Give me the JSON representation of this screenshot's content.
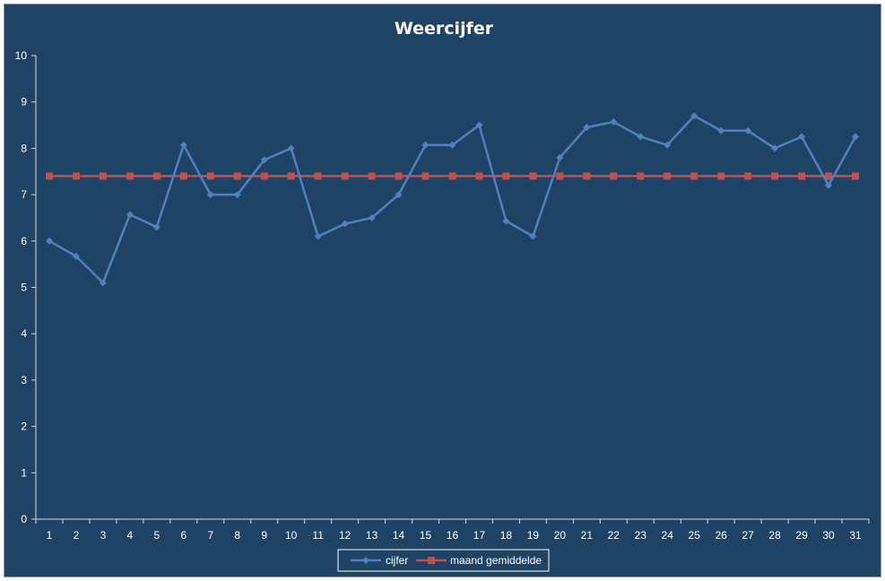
{
  "colors": {
    "background": "#1f4365",
    "series_cijfer": "#4f81bd",
    "series_gemiddelde": "#c0504d",
    "axis": "#d9d9d9"
  },
  "chart_data": {
    "type": "line",
    "title": "Weercijfer",
    "xlabel": "",
    "ylabel": "",
    "x": [
      1,
      2,
      3,
      4,
      5,
      6,
      7,
      8,
      9,
      10,
      11,
      12,
      13,
      14,
      15,
      16,
      17,
      18,
      19,
      20,
      21,
      22,
      23,
      24,
      25,
      26,
      27,
      28,
      29,
      30,
      31
    ],
    "ylim": [
      0,
      10
    ],
    "yticks": [
      0,
      1,
      2,
      3,
      4,
      5,
      6,
      7,
      8,
      9,
      10
    ],
    "grid": false,
    "legend_position": "bottom",
    "series": [
      {
        "name": "cijfer",
        "marker": "diamond",
        "values": [
          6.0,
          5.67,
          5.1,
          6.57,
          6.3,
          8.07,
          7.0,
          7.0,
          7.75,
          8.0,
          6.1,
          6.37,
          6.5,
          7.0,
          8.07,
          8.07,
          8.5,
          6.43,
          6.1,
          7.8,
          8.45,
          8.57,
          8.25,
          8.07,
          8.7,
          8.38,
          8.38,
          8.0,
          8.25,
          7.2,
          8.25
        ]
      },
      {
        "name": "maand gemiddelde",
        "marker": "square",
        "values": [
          7.4,
          7.4,
          7.4,
          7.4,
          7.4,
          7.4,
          7.4,
          7.4,
          7.4,
          7.4,
          7.4,
          7.4,
          7.4,
          7.4,
          7.4,
          7.4,
          7.4,
          7.4,
          7.4,
          7.4,
          7.4,
          7.4,
          7.4,
          7.4,
          7.4,
          7.4,
          7.4,
          7.4,
          7.4,
          7.4,
          7.4
        ]
      }
    ]
  }
}
